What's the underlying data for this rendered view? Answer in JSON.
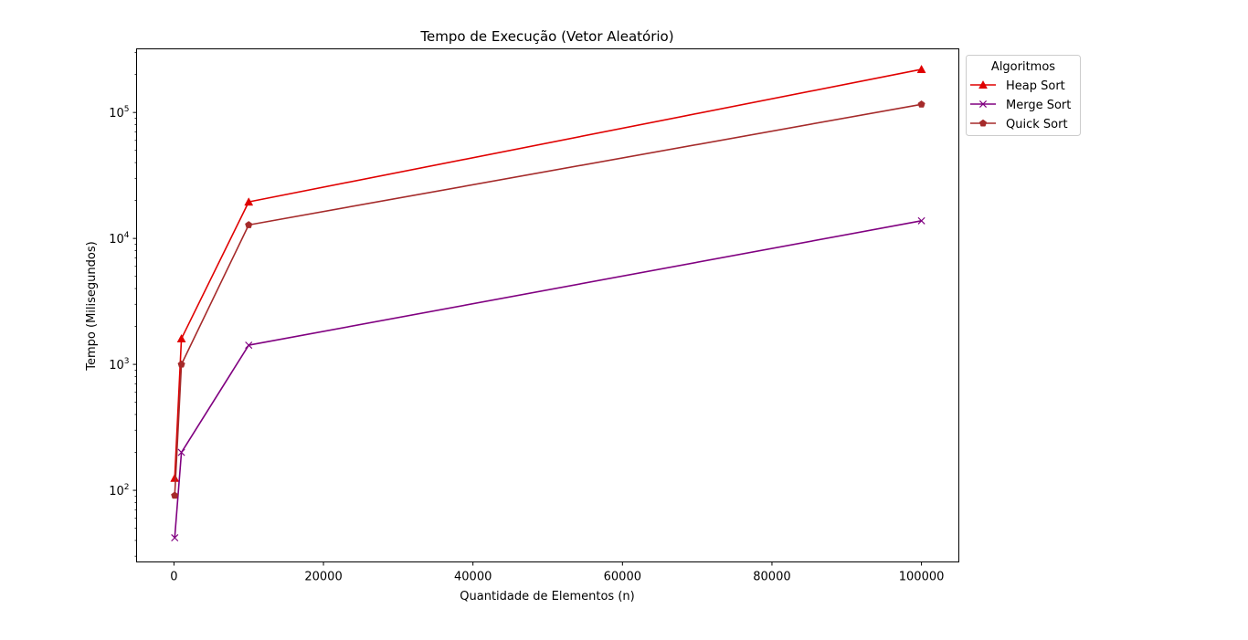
{
  "chart_data": {
    "type": "line",
    "title": "Tempo de Execução (Vetor Aleatório)",
    "xlabel": "Quantidade de Elementos (n)",
    "ylabel": "Tempo (Milisegundos)",
    "x": [
      100,
      1000,
      10000,
      100000
    ],
    "xlim": [
      -5000,
      105000
    ],
    "ylim": [
      27,
      320000
    ],
    "yscale": "log",
    "x_ticks": [
      0,
      20000,
      40000,
      60000,
      80000,
      100000
    ],
    "x_tick_labels": [
      "0",
      "20000",
      "40000",
      "60000",
      "80000",
      "100000"
    ],
    "y_major_ticks": [
      100,
      1000,
      10000,
      100000
    ],
    "y_tick_bases": [
      "10",
      "10",
      "10",
      "10"
    ],
    "y_tick_exponents": [
      "2",
      "3",
      "4",
      "5"
    ],
    "grid": false,
    "legend": {
      "title": "Algoritmos",
      "placement": "outside-top-right"
    },
    "series": [
      {
        "name": "Heap Sort",
        "color": "#e00000",
        "marker": "triangle",
        "values": [
          125,
          1600,
          19500,
          220000
        ]
      },
      {
        "name": "Merge Sort",
        "color": "#800080",
        "marker": "x",
        "values": [
          42,
          200,
          1420,
          13800
        ]
      },
      {
        "name": "Quick Sort",
        "color": "#a52a2a",
        "marker": "pentagon",
        "values": [
          91,
          1000,
          12800,
          116000
        ]
      }
    ]
  }
}
